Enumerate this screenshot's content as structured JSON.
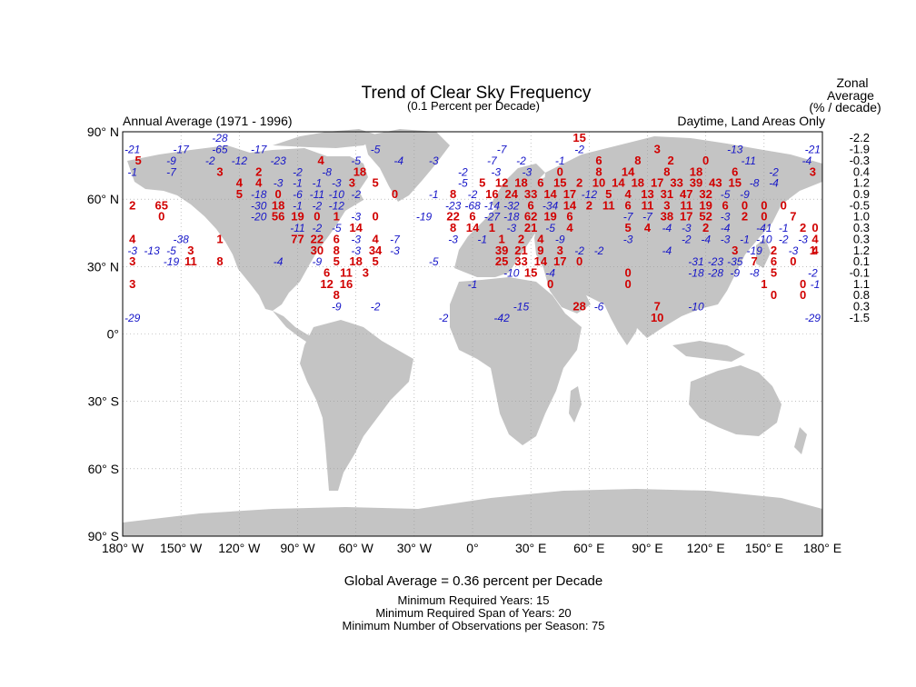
{
  "title": "Trend of Clear Sky Frequency",
  "subtitle": "(0.1 Percent per Decade)",
  "left_note": "Annual Average (1971 - 1996)",
  "right_note": "Daytime, Land Areas Only",
  "zonal_header": [
    "Zonal",
    "Average",
    "(% / decade)"
  ],
  "lat_labels": [
    {
      "label": "90° N",
      "lat": 90
    },
    {
      "label": "60° N",
      "lat": 60
    },
    {
      "label": "30° N",
      "lat": 30
    },
    {
      "label": "0°",
      "lat": 0
    },
    {
      "label": "30° S",
      "lat": -30
    },
    {
      "label": "60° S",
      "lat": -60
    },
    {
      "label": "90° S",
      "lat": -90
    }
  ],
  "lon_labels": [
    {
      "label": "180° W",
      "lon": -180
    },
    {
      "label": "150° W",
      "lon": -150
    },
    {
      "label": "120° W",
      "lon": -120
    },
    {
      "label": "90° W",
      "lon": -90
    },
    {
      "label": "60° W",
      "lon": -60
    },
    {
      "label": "30° W",
      "lon": -30
    },
    {
      "label": "0°",
      "lon": 0
    },
    {
      "label": "30° E",
      "lon": 30
    },
    {
      "label": "60° E",
      "lon": 60
    },
    {
      "label": "90° E",
      "lon": 90
    },
    {
      "label": "120° E",
      "lon": 120
    },
    {
      "label": "150° E",
      "lon": 150
    },
    {
      "label": "180° E",
      "lon": 180
    }
  ],
  "zonal_values": [
    "-2.2",
    "-1.9",
    "-0.3",
    "0.4",
    "1.2",
    "0.9",
    "-0.5",
    "1.0",
    "0.3",
    "0.3",
    "1.2",
    "0.1",
    "-0.1",
    "1.1",
    "0.8",
    "0.3",
    "-1.5"
  ],
  "grid_rows": [
    {
      "lat": 87.5,
      "cells": [
        [
          -130,
          -28
        ],
        [
          55,
          15
        ]
      ]
    },
    {
      "lat": 82.5,
      "cells": [
        [
          -175,
          -21
        ],
        [
          -150,
          -17
        ],
        [
          -110,
          -17
        ],
        [
          -130,
          -65
        ],
        [
          -50,
          -5
        ],
        [
          15,
          -7
        ],
        [
          55,
          -2
        ],
        [
          95,
          3
        ],
        [
          135,
          -13
        ],
        [
          175,
          -21
        ]
      ]
    },
    {
      "lat": 77.5,
      "cells": [
        [
          -172,
          5
        ],
        [
          -155,
          -9
        ],
        [
          -135,
          -2
        ],
        [
          -120,
          -12
        ],
        [
          -100,
          -23
        ],
        [
          -78,
          4
        ],
        [
          -60,
          -5
        ],
        [
          -38,
          -4
        ],
        [
          -20,
          -3
        ],
        [
          10,
          -7
        ],
        [
          25,
          -2
        ],
        [
          45,
          -1
        ],
        [
          65,
          6
        ],
        [
          85,
          8
        ],
        [
          102,
          2
        ],
        [
          120,
          0
        ],
        [
          142,
          -11
        ],
        [
          172,
          -4
        ]
      ]
    },
    {
      "lat": 72.5,
      "cells": [
        [
          -175,
          -1
        ],
        [
          -155,
          -7
        ],
        [
          -130,
          3
        ],
        [
          -110,
          2
        ],
        [
          -90,
          -2
        ],
        [
          -75,
          -8
        ],
        [
          -58,
          18
        ],
        [
          -5,
          -2
        ],
        [
          12,
          -3
        ],
        [
          28,
          -3
        ],
        [
          45,
          0
        ],
        [
          65,
          8
        ],
        [
          80,
          14
        ],
        [
          100,
          8
        ],
        [
          115,
          18
        ],
        [
          135,
          6
        ],
        [
          155,
          -2
        ],
        [
          175,
          3
        ]
      ]
    },
    {
      "lat": 67.5,
      "cells": [
        [
          -120,
          4
        ],
        [
          -110,
          4
        ],
        [
          -100,
          -3
        ],
        [
          -90,
          -1
        ],
        [
          -80,
          -1
        ],
        [
          -70,
          -3
        ],
        [
          -62,
          3
        ],
        [
          -50,
          5
        ],
        [
          -5,
          -5
        ],
        [
          5,
          5
        ],
        [
          15,
          12
        ],
        [
          25,
          18
        ],
        [
          35,
          6
        ],
        [
          45,
          15
        ],
        [
          55,
          2
        ],
        [
          65,
          10
        ],
        [
          75,
          14
        ],
        [
          85,
          18
        ],
        [
          95,
          17
        ],
        [
          105,
          33
        ],
        [
          115,
          39
        ],
        [
          125,
          43
        ],
        [
          135,
          15
        ],
        [
          145,
          -8
        ],
        [
          155,
          -4
        ]
      ]
    },
    {
      "lat": 62.5,
      "cells": [
        [
          -120,
          5
        ],
        [
          -110,
          -18
        ],
        [
          -100,
          0
        ],
        [
          -90,
          -6
        ],
        [
          -80,
          -11
        ],
        [
          -70,
          -10
        ],
        [
          -60,
          -2
        ],
        [
          -40,
          0
        ],
        [
          -20,
          -1
        ],
        [
          -10,
          8
        ],
        [
          0,
          -2
        ],
        [
          10,
          16
        ],
        [
          20,
          24
        ],
        [
          30,
          33
        ],
        [
          40,
          14
        ],
        [
          50,
          17
        ],
        [
          60,
          -12
        ],
        [
          70,
          5
        ],
        [
          80,
          4
        ],
        [
          90,
          13
        ],
        [
          100,
          31
        ],
        [
          110,
          47
        ],
        [
          120,
          32
        ],
        [
          130,
          -5
        ],
        [
          140,
          -9
        ]
      ]
    },
    {
      "lat": 57.5,
      "cells": [
        [
          -175,
          2
        ],
        [
          -160,
          65
        ],
        [
          -110,
          -30
        ],
        [
          -100,
          18
        ],
        [
          -90,
          -1
        ],
        [
          -80,
          -2
        ],
        [
          -70,
          -12
        ],
        [
          -10,
          -23
        ],
        [
          0,
          -68
        ],
        [
          10,
          -14
        ],
        [
          20,
          -32
        ],
        [
          30,
          6
        ],
        [
          40,
          -34
        ],
        [
          50,
          14
        ],
        [
          60,
          2
        ],
        [
          70,
          11
        ],
        [
          80,
          6
        ],
        [
          90,
          11
        ],
        [
          100,
          3
        ],
        [
          110,
          11
        ],
        [
          120,
          19
        ],
        [
          130,
          6
        ],
        [
          140,
          0
        ],
        [
          150,
          0
        ],
        [
          160,
          0
        ]
      ]
    },
    {
      "lat": 52.5,
      "cells": [
        [
          -160,
          0
        ],
        [
          -110,
          -20
        ],
        [
          -100,
          56
        ],
        [
          -90,
          19
        ],
        [
          -80,
          0
        ],
        [
          -70,
          1
        ],
        [
          -60,
          -3
        ],
        [
          -50,
          0
        ],
        [
          -25,
          -19
        ],
        [
          -10,
          22
        ],
        [
          0,
          6
        ],
        [
          10,
          -27
        ],
        [
          20,
          -18
        ],
        [
          30,
          62
        ],
        [
          40,
          19
        ],
        [
          50,
          6
        ],
        [
          80,
          -7
        ],
        [
          90,
          -7
        ],
        [
          100,
          38
        ],
        [
          110,
          17
        ],
        [
          120,
          52
        ],
        [
          130,
          -3
        ],
        [
          140,
          2
        ],
        [
          150,
          0
        ],
        [
          165,
          7
        ]
      ]
    },
    {
      "lat": 47.5,
      "cells": [
        [
          -90,
          -11
        ],
        [
          -80,
          -2
        ],
        [
          -70,
          -5
        ],
        [
          -60,
          14
        ],
        [
          -10,
          8
        ],
        [
          0,
          14
        ],
        [
          10,
          1
        ],
        [
          20,
          -3
        ],
        [
          30,
          21
        ],
        [
          40,
          -5
        ],
        [
          50,
          4
        ],
        [
          80,
          5
        ],
        [
          90,
          4
        ],
        [
          100,
          -4
        ],
        [
          110,
          -3
        ],
        [
          120,
          2
        ],
        [
          130,
          -4
        ],
        [
          150,
          -41
        ],
        [
          160,
          -1
        ],
        [
          170,
          2
        ],
        [
          180,
          0
        ]
      ]
    },
    {
      "lat": 42.5,
      "cells": [
        [
          -175,
          4
        ],
        [
          -150,
          -38
        ],
        [
          -130,
          1
        ],
        [
          -90,
          77
        ],
        [
          -80,
          22
        ],
        [
          -70,
          6
        ],
        [
          -60,
          -3
        ],
        [
          -50,
          4
        ],
        [
          -40,
          -7
        ],
        [
          -10,
          -3
        ],
        [
          5,
          -1
        ],
        [
          15,
          1
        ],
        [
          25,
          2
        ],
        [
          35,
          4
        ],
        [
          45,
          -9
        ],
        [
          80,
          -3
        ],
        [
          110,
          -2
        ],
        [
          120,
          -4
        ],
        [
          130,
          -3
        ],
        [
          140,
          -1
        ],
        [
          150,
          -10
        ],
        [
          160,
          -2
        ],
        [
          170,
          -3
        ],
        [
          180,
          4
        ]
      ]
    },
    {
      "lat": 37.5,
      "cells": [
        [
          -175,
          -3
        ],
        [
          -165,
          -13
        ],
        [
          -155,
          -5
        ],
        [
          -145,
          3
        ],
        [
          -80,
          30
        ],
        [
          -70,
          8
        ],
        [
          -60,
          -3
        ],
        [
          -50,
          34
        ],
        [
          -40,
          -3
        ],
        [
          15,
          39
        ],
        [
          25,
          21
        ],
        [
          35,
          9
        ],
        [
          45,
          3
        ],
        [
          55,
          -2
        ],
        [
          65,
          -2
        ],
        [
          100,
          -4
        ],
        [
          135,
          3
        ],
        [
          145,
          -19
        ],
        [
          155,
          2
        ],
        [
          165,
          -3
        ],
        [
          175,
          1
        ],
        [
          185,
          4
        ]
      ]
    },
    {
      "lat": 32.5,
      "cells": [
        [
          -175,
          3
        ],
        [
          -155,
          -19
        ],
        [
          -145,
          11
        ],
        [
          -130,
          8
        ],
        [
          -100,
          -4
        ],
        [
          -80,
          -9
        ],
        [
          -70,
          5
        ],
        [
          -60,
          18
        ],
        [
          -50,
          5
        ],
        [
          -20,
          -5
        ],
        [
          15,
          25
        ],
        [
          25,
          33
        ],
        [
          35,
          14
        ],
        [
          45,
          17
        ],
        [
          55,
          0
        ],
        [
          115,
          -31
        ],
        [
          125,
          -23
        ],
        [
          135,
          -35
        ],
        [
          145,
          7
        ],
        [
          155,
          6
        ],
        [
          165,
          0
        ]
      ]
    },
    {
      "lat": 27.5,
      "cells": [
        [
          -75,
          6
        ],
        [
          -65,
          11
        ],
        [
          -55,
          3
        ],
        [
          20,
          -10
        ],
        [
          30,
          15
        ],
        [
          40,
          -4
        ],
        [
          80,
          0
        ],
        [
          115,
          -18
        ],
        [
          125,
          -28
        ],
        [
          135,
          -9
        ],
        [
          145,
          -8
        ],
        [
          155,
          5
        ],
        [
          175,
          -2
        ]
      ]
    },
    {
      "lat": 22.5,
      "cells": [
        [
          -175,
          3
        ],
        [
          -75,
          12
        ],
        [
          -65,
          16
        ],
        [
          0,
          -1
        ],
        [
          40,
          0
        ],
        [
          80,
          0
        ],
        [
          150,
          1
        ],
        [
          170,
          0
        ],
        [
          180,
          -1
        ]
      ]
    },
    {
      "lat": 17.5,
      "cells": [
        [
          -70,
          8
        ],
        [
          155,
          0
        ],
        [
          170,
          0
        ]
      ]
    },
    {
      "lat": 12.5,
      "cells": [
        [
          -70,
          -9
        ],
        [
          -50,
          -2
        ],
        [
          25,
          -15
        ],
        [
          55,
          28
        ],
        [
          65,
          -6
        ],
        [
          95,
          7
        ],
        [
          115,
          -10
        ]
      ]
    },
    {
      "lat": 7.5,
      "cells": [
        [
          -175,
          -29
        ],
        [
          -15,
          -2
        ],
        [
          15,
          -42
        ],
        [
          95,
          10
        ],
        [
          175,
          -29
        ]
      ]
    }
  ],
  "global_average": "Global Average = 0.36 percent per Decade",
  "footnotes": [
    "Minimum Required Years: 15",
    "Minimum Required Span of Years: 20",
    "Minimum Number of Observations per Season: 75"
  ]
}
